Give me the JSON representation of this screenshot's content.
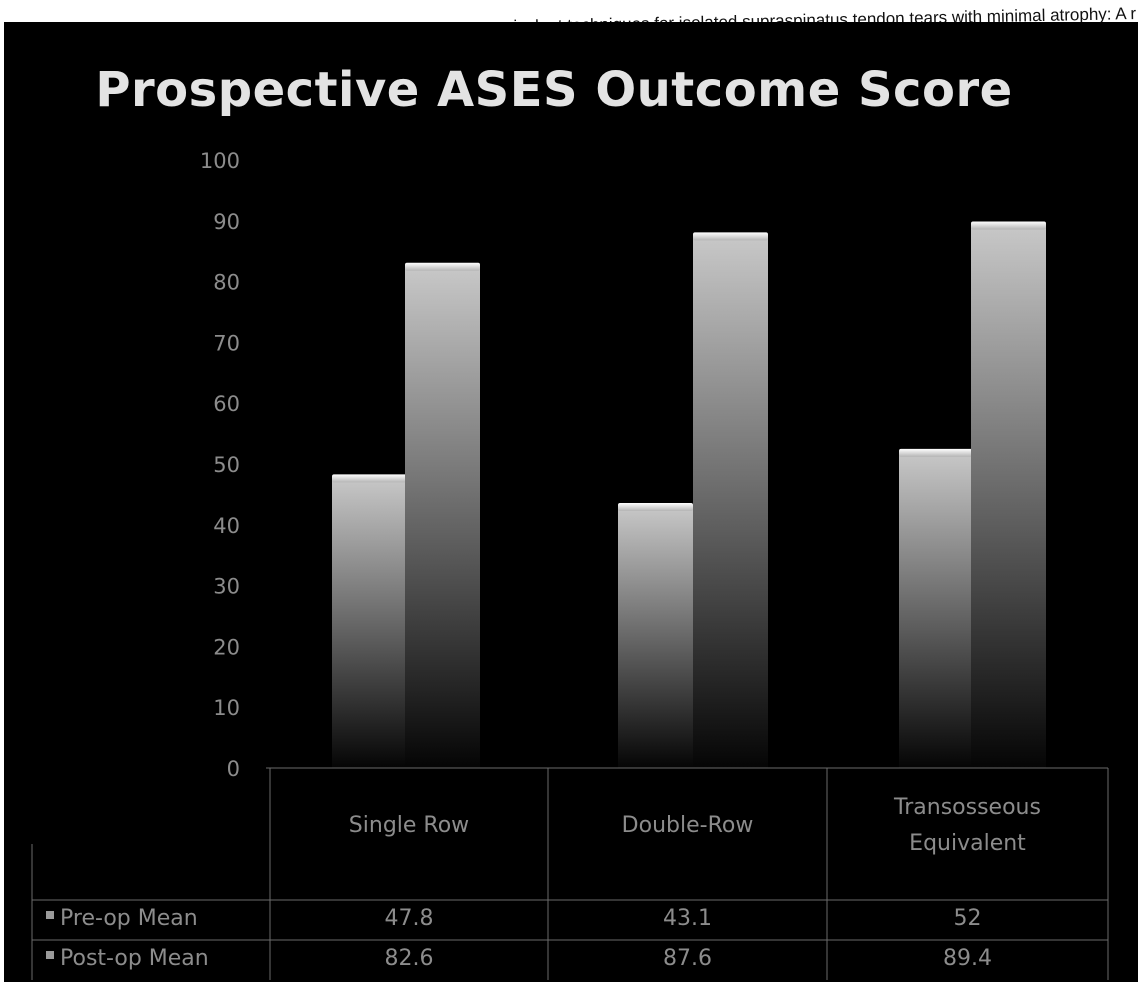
{
  "caption": "osseous-equivalent techniques for isolated supraspinatus tendon tears with minimal atrophy: A r",
  "chart_data": {
    "type": "bar",
    "title": "Prospective ASES Outcome Score",
    "categories": [
      "Single Row",
      "Double-Row",
      "Transosseous Equivalent"
    ],
    "category_lines": [
      [
        "Single Row"
      ],
      [
        "Double-Row"
      ],
      [
        "Transosseous",
        "Equivalent"
      ]
    ],
    "series": [
      {
        "name": "Pre-op Mean",
        "values": [
          47.8,
          43.1,
          52
        ],
        "labels": [
          "47.8",
          "43.1",
          "52"
        ]
      },
      {
        "name": "Post-op Mean",
        "values": [
          82.6,
          87.6,
          89.4
        ],
        "labels": [
          "82.6",
          "87.6",
          "89.4"
        ]
      }
    ],
    "yticks": [
      "0",
      "10",
      "20",
      "30",
      "40",
      "50",
      "60",
      "70",
      "80",
      "90",
      "100"
    ],
    "ylim": [
      0,
      100
    ],
    "grid": false,
    "legend": "data-table",
    "colors": {
      "background": "#000000",
      "bar": "#c0c0c0",
      "text": "#8c8c8c",
      "title": "#e3e3e3"
    }
  }
}
